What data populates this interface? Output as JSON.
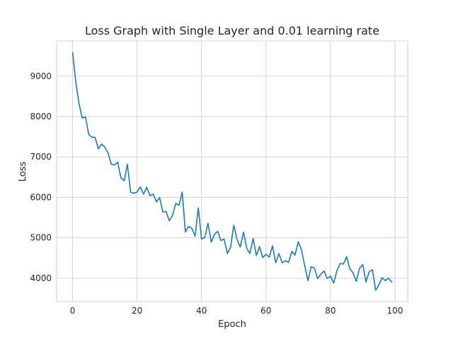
{
  "chart_data": {
    "type": "line",
    "title": "Loss Graph with Single Layer and 0.01 learning rate",
    "xlabel": "Epoch",
    "ylabel": "Loss",
    "xlim": [
      -4.95,
      103.95
    ],
    "ylim": [
      3420,
      9870
    ],
    "xticks": [
      0,
      20,
      40,
      60,
      80,
      100
    ],
    "yticks": [
      4000,
      5000,
      6000,
      7000,
      8000,
      9000
    ],
    "grid": true,
    "line_color": "#1f77b4",
    "series": [
      {
        "values": [
          9580,
          8850,
          8320,
          7960,
          7990,
          7560,
          7490,
          7480,
          7200,
          7320,
          7240,
          7100,
          6820,
          6800,
          6870,
          6480,
          6410,
          6820,
          6130,
          6100,
          6130,
          6260,
          6080,
          6250,
          6040,
          6080,
          5890,
          5990,
          5640,
          5650,
          5420,
          5550,
          5850,
          5800,
          6130,
          5140,
          5280,
          5230,
          5040,
          5740,
          4970,
          5000,
          5360,
          4890,
          5080,
          5160,
          4930,
          4970,
          4610,
          4760,
          5310,
          4960,
          4770,
          5140,
          4740,
          4610,
          4980,
          4560,
          4780,
          4510,
          4590,
          4520,
          4800,
          4380,
          4610,
          4380,
          4430,
          4390,
          4660,
          4570,
          4900,
          4700,
          4310,
          3940,
          4280,
          4250,
          3990,
          4100,
          4180,
          3990,
          4050,
          3880,
          4190,
          4360,
          4350,
          4530,
          4230,
          4130,
          3920,
          4240,
          4340,
          3900,
          4160,
          4210,
          3700,
          3830,
          4010,
          3940,
          4000,
          3900
        ]
      }
    ]
  }
}
